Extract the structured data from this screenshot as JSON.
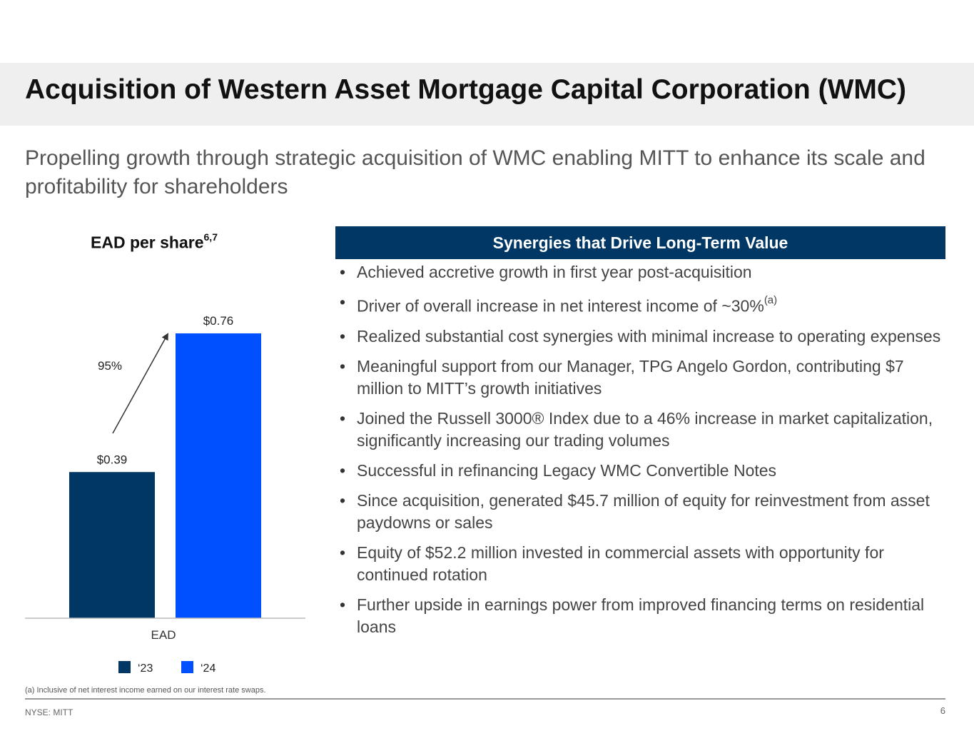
{
  "header": {
    "title": "Acquisition of Western Asset Mortgage Capital Corporation (WMC)"
  },
  "subtitle": "Propelling growth through strategic acquisition of WMC enabling MITT to enhance its scale and profitability for shareholders",
  "chart_data": {
    "type": "bar",
    "title": "EAD per share",
    "title_superscript": "6,7",
    "categories": [
      "EAD"
    ],
    "series": [
      {
        "name": "‘23",
        "values": [
          0.39
        ],
        "color": "#003764"
      },
      {
        "name": "‘24",
        "values": [
          0.76
        ],
        "color": "#0050ff"
      }
    ],
    "value_labels": [
      "$0.39",
      "$0.76"
    ],
    "annotation": "95%",
    "ylim": [
      0,
      0.8
    ],
    "grid": false,
    "legend": "bottom"
  },
  "synergies": {
    "header": "Synergies that Drive Long-Term Value",
    "bullet_glyph": "•",
    "items": [
      {
        "text": "Achieved accretive growth in first year post-acquisition",
        "sup": ""
      },
      {
        "text": "Driver of overall increase in net interest income of ~30%",
        "sup": "(a)"
      },
      {
        "text": "Realized substantial cost synergies with minimal increase to operating expenses",
        "sup": ""
      },
      {
        "text": "Meaningful support from our Manager, TPG Angelo Gordon, contributing $7 million to MITT’s growth initiatives",
        "sup": ""
      },
      {
        "text": "Joined the Russell 3000® Index due to a 46% increase in market capitalization, significantly increasing our trading volumes",
        "sup": ""
      },
      {
        "text": "Successful in refinancing Legacy WMC Convertible Notes",
        "sup": ""
      },
      {
        "text": "Since acquisition, generated $45.7 million of equity for reinvestment from asset paydowns or sales",
        "sup": ""
      },
      {
        "text": "Equity of $52.2 million invested in commercial assets with opportunity for continued rotation",
        "sup": ""
      },
      {
        "text": "Further upside in earnings power from improved financing terms on residential loans",
        "sup": ""
      }
    ]
  },
  "footer": {
    "footnote": "(a) Inclusive of net interest income earned on our interest rate swaps.",
    "ticker": "NYSE: MITT",
    "page_number": "6"
  }
}
